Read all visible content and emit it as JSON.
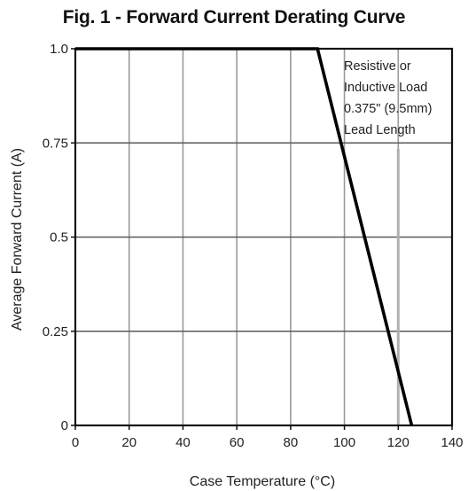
{
  "chart_data": {
    "type": "line",
    "title": "Fig. 1 - Forward Current Derating Curve",
    "xlabel": "Case Temperature (°C)",
    "ylabel": "Average Forward Current (A)",
    "xlim": [
      0,
      140
    ],
    "ylim": [
      0,
      1.0
    ],
    "x_ticks": [
      0,
      20,
      40,
      60,
      80,
      100,
      120,
      140
    ],
    "x_tick_labels": [
      "0",
      "20",
      "40",
      "60",
      "80",
      "100",
      "120",
      "140"
    ],
    "y_ticks": [
      0,
      0.25,
      0.5,
      0.75,
      1.0
    ],
    "y_tick_labels": [
      "0",
      "0.25",
      "0.5",
      "0.75",
      "1.0"
    ],
    "grid": true,
    "series": [
      {
        "x": [
          0,
          90,
          125
        ],
        "y": [
          1.0,
          1.0,
          0
        ]
      }
    ],
    "annotation": [
      "Resistive or",
      "Inductive Load",
      "0.375\" (9.5mm)",
      "Lead Length"
    ]
  },
  "colors": {
    "grid": "#9a9a9a",
    "line": "#000000",
    "frame": "#111111",
    "annotation_marker": "#b0b0b0"
  }
}
